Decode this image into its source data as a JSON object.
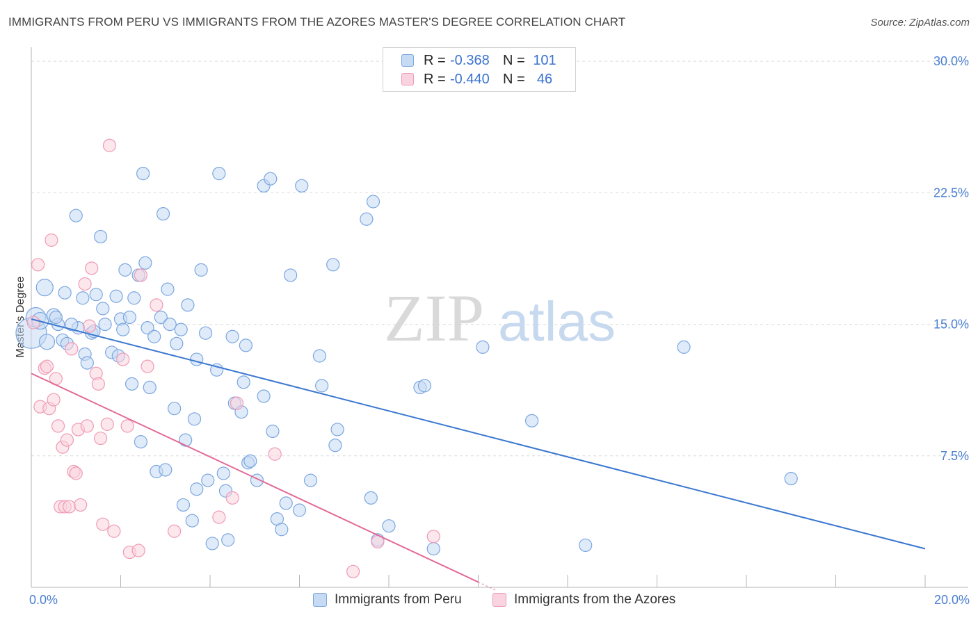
{
  "chart_data": {
    "type": "scatter",
    "title": "IMMIGRANTS FROM PERU VS IMMIGRANTS FROM THE AZORES MASTER'S DEGREE CORRELATION CHART",
    "source": "Source: ZipAtlas.com",
    "ylabel": "Master's Degree",
    "xlabel": "",
    "xlim": [
      0,
      20
    ],
    "ylim": [
      0,
      30.8
    ],
    "x_tick_labels": [
      "0.0%",
      "20.0%"
    ],
    "y_ticks": [
      {
        "value": 30.0,
        "label": "30.0%"
      },
      {
        "value": 22.5,
        "label": "22.5%"
      },
      {
        "value": 15.0,
        "label": "15.0%"
      },
      {
        "value": 7.5,
        "label": "7.5%"
      }
    ],
    "watermark": {
      "zip": "ZIP",
      "atlas": "atlas"
    },
    "legend": {
      "r_label": "R =",
      "n_label": "N =",
      "entries": [
        {
          "name": "Immigrants from Peru",
          "r": "-0.368",
          "n": "101"
        },
        {
          "name": "Immigrants from the Azores",
          "r": "-0.440",
          "n": "46"
        }
      ]
    },
    "series": [
      {
        "name": "Immigrants from Peru",
        "color": "#7aa6e0",
        "fill": "#c7daf4",
        "trend": {
          "x0": 0.0,
          "y0": 15.3,
          "x1": 20.0,
          "y1": 2.2,
          "color": "#3a77d0"
        },
        "points": [
          [
            0.0,
            14.5,
            22
          ],
          [
            0.1,
            15.4,
            14
          ],
          [
            0.2,
            15.2,
            12
          ],
          [
            0.3,
            17.1,
            12
          ],
          [
            0.35,
            14.0,
            11
          ],
          [
            0.5,
            15.5,
            10
          ],
          [
            0.6,
            15.0,
            9
          ],
          [
            0.7,
            14.1,
            9
          ],
          [
            0.75,
            16.8,
            9
          ],
          [
            0.8,
            13.9,
            9
          ],
          [
            1.0,
            21.2,
            9
          ],
          [
            1.05,
            14.8,
            9
          ],
          [
            1.15,
            16.5,
            9
          ],
          [
            1.2,
            13.3,
            9
          ],
          [
            1.25,
            12.8,
            9
          ],
          [
            1.35,
            14.5,
            9
          ],
          [
            1.45,
            16.7,
            9
          ],
          [
            1.55,
            20.0,
            9
          ],
          [
            1.6,
            15.9,
            9
          ],
          [
            1.65,
            15.0,
            9
          ],
          [
            1.8,
            13.4,
            9
          ],
          [
            1.9,
            16.6,
            9
          ],
          [
            1.95,
            13.2,
            9
          ],
          [
            2.0,
            15.3,
            9
          ],
          [
            2.05,
            14.7,
            9
          ],
          [
            2.1,
            18.1,
            9
          ],
          [
            2.2,
            15.4,
            9
          ],
          [
            2.25,
            11.6,
            9
          ],
          [
            2.4,
            17.8,
            9
          ],
          [
            2.45,
            8.3,
            9
          ],
          [
            2.5,
            23.6,
            9
          ],
          [
            2.55,
            18.5,
            9
          ],
          [
            2.6,
            14.8,
            9
          ],
          [
            2.65,
            11.4,
            9
          ],
          [
            2.75,
            14.3,
            9
          ],
          [
            2.8,
            6.6,
            9
          ],
          [
            2.9,
            15.4,
            9
          ],
          [
            2.95,
            21.3,
            9
          ],
          [
            3.0,
            6.7,
            9
          ],
          [
            3.05,
            17.0,
            9
          ],
          [
            3.1,
            15.0,
            9
          ],
          [
            3.2,
            10.2,
            9
          ],
          [
            3.25,
            13.9,
            9
          ],
          [
            3.35,
            14.7,
            9
          ],
          [
            3.4,
            4.7,
            9
          ],
          [
            3.45,
            8.4,
            9
          ],
          [
            3.5,
            16.1,
            9
          ],
          [
            3.6,
            3.8,
            9
          ],
          [
            3.65,
            9.6,
            9
          ],
          [
            3.7,
            5.6,
            9
          ],
          [
            3.8,
            18.1,
            9
          ],
          [
            3.9,
            14.5,
            9
          ],
          [
            3.95,
            6.1,
            9
          ],
          [
            4.05,
            2.5,
            9
          ],
          [
            4.15,
            12.4,
            9
          ],
          [
            4.2,
            23.6,
            9
          ],
          [
            4.3,
            6.5,
            9
          ],
          [
            4.35,
            5.5,
            9
          ],
          [
            4.4,
            2.7,
            9
          ],
          [
            4.5,
            14.3,
            9
          ],
          [
            4.55,
            10.5,
            9
          ],
          [
            4.7,
            10.0,
            9
          ],
          [
            4.75,
            11.7,
            9
          ],
          [
            4.8,
            13.8,
            9
          ],
          [
            4.85,
            7.1,
            9
          ],
          [
            4.9,
            7.2,
            9
          ],
          [
            5.05,
            6.1,
            9
          ],
          [
            5.2,
            22.9,
            9
          ],
          [
            5.35,
            23.3,
            9
          ],
          [
            5.4,
            8.9,
            9
          ],
          [
            5.5,
            3.9,
            9
          ],
          [
            5.6,
            3.3,
            9
          ],
          [
            5.7,
            4.8,
            9
          ],
          [
            5.8,
            17.8,
            9
          ],
          [
            6.0,
            4.4,
            9
          ],
          [
            6.05,
            22.9,
            9
          ],
          [
            6.25,
            6.1,
            9
          ],
          [
            6.45,
            13.2,
            9
          ],
          [
            6.5,
            11.5,
            9
          ],
          [
            6.75,
            18.4,
            9
          ],
          [
            6.8,
            8.1,
            9
          ],
          [
            6.85,
            9.0,
            9
          ],
          [
            7.5,
            21.0,
            9
          ],
          [
            7.65,
            22.0,
            9
          ],
          [
            7.6,
            5.1,
            9
          ],
          [
            7.75,
            2.7,
            9
          ],
          [
            8.0,
            3.5,
            9
          ],
          [
            8.7,
            11.4,
            9
          ],
          [
            8.8,
            11.5,
            9
          ],
          [
            9.0,
            2.2,
            9
          ],
          [
            10.1,
            13.7,
            9
          ],
          [
            11.2,
            9.5,
            9
          ],
          [
            12.4,
            2.4,
            9
          ],
          [
            14.6,
            13.7,
            9
          ],
          [
            17.0,
            6.2,
            9
          ],
          [
            0.55,
            15.4,
            9
          ],
          [
            1.4,
            14.6,
            9
          ],
          [
            0.9,
            15.0,
            9
          ],
          [
            2.3,
            16.5,
            9
          ],
          [
            3.7,
            13.0,
            9
          ],
          [
            5.2,
            10.9,
            9
          ]
        ]
      },
      {
        "name": "Immigrants from the Azores",
        "color": "#ef9ab5",
        "fill": "#f9d3df",
        "trend": {
          "x0": 0.0,
          "y0": 12.2,
          "x1": 10.0,
          "y1": 0.3,
          "dash_to_x": 10.4,
          "color": "#e36a97"
        },
        "points": [
          [
            0.05,
            15.1,
            9
          ],
          [
            0.15,
            18.4,
            9
          ],
          [
            0.2,
            10.3,
            9
          ],
          [
            0.3,
            12.5,
            9
          ],
          [
            0.35,
            12.6,
            9
          ],
          [
            0.4,
            10.2,
            9
          ],
          [
            0.45,
            19.8,
            9
          ],
          [
            0.5,
            10.7,
            9
          ],
          [
            0.55,
            11.9,
            9
          ],
          [
            0.6,
            9.2,
            9
          ],
          [
            0.65,
            4.6,
            9
          ],
          [
            0.7,
            8.0,
            9
          ],
          [
            0.75,
            4.6,
            9
          ],
          [
            0.8,
            8.4,
            9
          ],
          [
            0.85,
            4.6,
            9
          ],
          [
            0.9,
            13.6,
            9
          ],
          [
            0.95,
            6.6,
            9
          ],
          [
            1.0,
            6.5,
            9
          ],
          [
            1.05,
            9.0,
            9
          ],
          [
            1.1,
            4.7,
            9
          ],
          [
            1.2,
            17.3,
            9
          ],
          [
            1.25,
            9.2,
            9
          ],
          [
            1.3,
            14.9,
            9
          ],
          [
            1.35,
            18.2,
            9
          ],
          [
            1.45,
            12.2,
            9
          ],
          [
            1.5,
            11.6,
            9
          ],
          [
            1.55,
            8.5,
            9
          ],
          [
            1.6,
            3.6,
            9
          ],
          [
            1.7,
            9.3,
            9
          ],
          [
            1.75,
            25.2,
            9
          ],
          [
            1.85,
            3.2,
            9
          ],
          [
            2.05,
            13.0,
            9
          ],
          [
            2.15,
            9.2,
            9
          ],
          [
            2.2,
            2.0,
            9
          ],
          [
            2.4,
            2.1,
            9
          ],
          [
            2.45,
            17.8,
            9
          ],
          [
            2.6,
            12.6,
            9
          ],
          [
            2.8,
            16.1,
            9
          ],
          [
            3.2,
            3.2,
            9
          ],
          [
            4.2,
            4.0,
            9
          ],
          [
            4.6,
            10.5,
            9
          ],
          [
            4.5,
            5.1,
            9
          ],
          [
            5.45,
            7.6,
            9
          ],
          [
            7.75,
            2.6,
            9
          ],
          [
            9.0,
            2.9,
            9
          ],
          [
            7.2,
            0.9,
            9
          ]
        ]
      }
    ]
  }
}
